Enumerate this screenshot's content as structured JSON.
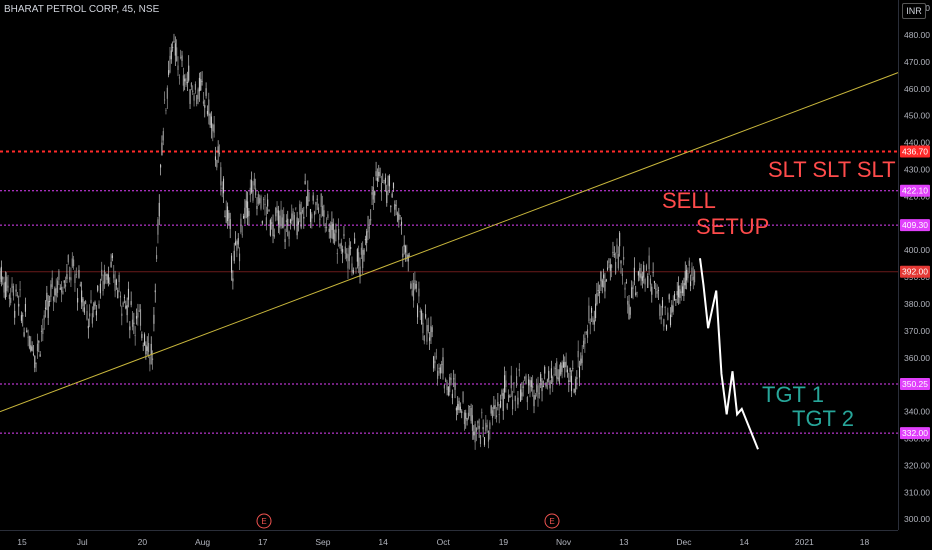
{
  "header": {
    "title": "BHARAT PETROL CORP, 45, NSE",
    "currency": "INR"
  },
  "colors": {
    "background": "#000000",
    "candle_up": "#c8c8c8",
    "candle_down": "#9a9a9a",
    "trendline": "#c9b73c",
    "level_line": "#e040fb",
    "stop_line": "#ff2a2a",
    "projection": "#ffffff",
    "text_red": "#ff4b4b",
    "text_teal": "#27a69a"
  },
  "annotations": {
    "stop_loss": "SLT SLT SLT",
    "sell": "SELL",
    "setup": "SETUP",
    "tgt1": "TGT 1",
    "tgt2": "TGT 2"
  },
  "chart_data": {
    "type": "candlestick",
    "ylim": [
      296,
      493
    ],
    "y_ticks": [
      300,
      310,
      320,
      330,
      340,
      350,
      360,
      370,
      380,
      390,
      400,
      410,
      420,
      430,
      440,
      450,
      460,
      470,
      480,
      490
    ],
    "x_labels": [
      "15",
      "Jul",
      "20",
      "Aug",
      "17",
      "Sep",
      "14",
      "Oct",
      "19",
      "Nov",
      "13",
      "Dec",
      "14",
      "2021",
      "18"
    ],
    "event_markers": [
      "E",
      "E"
    ],
    "levels": [
      {
        "label": "436.70",
        "value": 436.7,
        "style": "stop"
      },
      {
        "label": "422.10",
        "value": 422.1,
        "style": "level"
      },
      {
        "label": "409.30",
        "value": 409.3,
        "style": "level"
      },
      {
        "label": "392.00",
        "value": 392.0,
        "style": "current"
      },
      {
        "label": "350.25",
        "value": 350.25,
        "style": "level"
      },
      {
        "label": "332.00",
        "value": 332.0,
        "style": "level"
      }
    ],
    "trendline": {
      "from": [
        0,
        340
      ],
      "to": [
        1,
        466
      ]
    },
    "price_path": [
      [
        0,
        392
      ],
      [
        0.02,
        380
      ],
      [
        0.04,
        362
      ],
      [
        0.06,
        386
      ],
      [
        0.08,
        393
      ],
      [
        0.1,
        375
      ],
      [
        0.12,
        394
      ],
      [
        0.14,
        380
      ],
      [
        0.16,
        370
      ],
      [
        0.17,
        360
      ],
      [
        0.18,
        440
      ],
      [
        0.19,
        475
      ],
      [
        0.21,
        462
      ],
      [
        0.23,
        456
      ],
      [
        0.25,
        420
      ],
      [
        0.26,
        394
      ],
      [
        0.28,
        422
      ],
      [
        0.3,
        412
      ],
      [
        0.32,
        408
      ],
      [
        0.34,
        418
      ],
      [
        0.36,
        415
      ],
      [
        0.38,
        402
      ],
      [
        0.4,
        395
      ],
      [
        0.42,
        428
      ],
      [
        0.44,
        418
      ],
      [
        0.46,
        385
      ],
      [
        0.48,
        365
      ],
      [
        0.5,
        350
      ],
      [
        0.52,
        340
      ],
      [
        0.54,
        332
      ],
      [
        0.56,
        345
      ],
      [
        0.58,
        350
      ],
      [
        0.6,
        346
      ],
      [
        0.62,
        355
      ],
      [
        0.64,
        352
      ],
      [
        0.66,
        378
      ],
      [
        0.68,
        395
      ],
      [
        0.69,
        400
      ],
      [
        0.7,
        382
      ],
      [
        0.72,
        394
      ],
      [
        0.74,
        375
      ],
      [
        0.76,
        388
      ],
      [
        0.775,
        392
      ]
    ],
    "projection": [
      [
        0,
        397
      ],
      [
        0.06,
        387
      ],
      [
        0.14,
        371
      ],
      [
        0.28,
        385
      ],
      [
        0.37,
        354
      ],
      [
        0.46,
        339
      ],
      [
        0.56,
        355
      ],
      [
        0.64,
        339
      ],
      [
        0.72,
        341
      ],
      [
        1,
        326
      ]
    ]
  }
}
